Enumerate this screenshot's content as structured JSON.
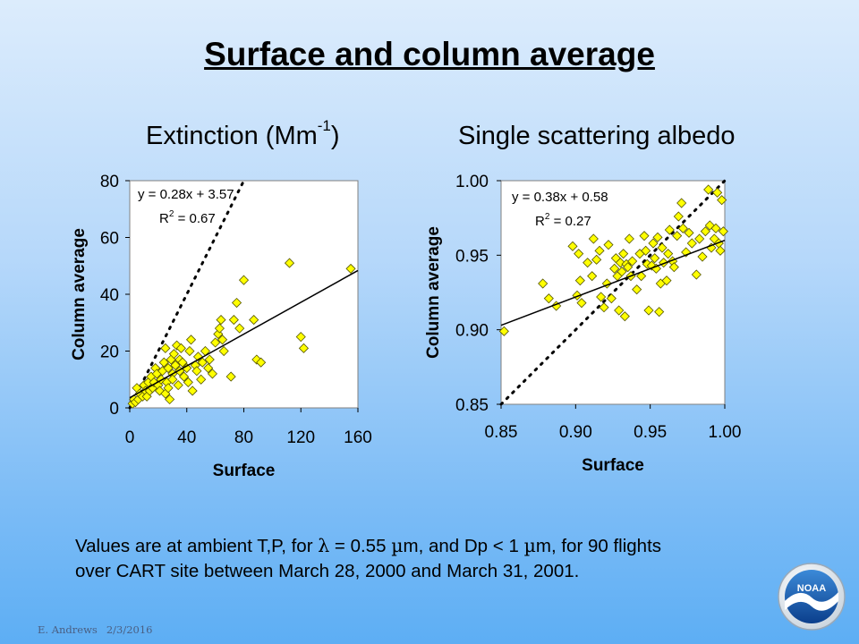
{
  "slide": {
    "title": "Surface and column average",
    "left_heading": {
      "text": "Extinction (Mm",
      "sup": "-1",
      "after": ")"
    },
    "right_heading": "Single scattering albedo",
    "note": {
      "part1": "Values are at ambient T,P, for ",
      "lambda_symbol": "λ",
      "part2": " = 0.55 ",
      "mu_symbol": "µ",
      "part3": "m, and Dp < 1 ",
      "mu_symbol2": "µ",
      "part4": "m, for 90 flights",
      "line2": "over CART site between March 28, 2000 and March 31, 2001."
    },
    "footer": {
      "author": "E. Andrews",
      "date": "2/3/2016"
    },
    "logo_text": "NOAA"
  },
  "colors": {
    "marker_fill": "#ffff00",
    "marker_stroke": "#555500",
    "plot_bg": "#ffffff",
    "line": "#000000"
  },
  "chart_data": [
    {
      "type": "scatter",
      "title": "Extinction (Mm-1)",
      "xlabel": "Surface",
      "ylabel": "Column average",
      "xlim": [
        0,
        160
      ],
      "ylim": [
        0,
        80
      ],
      "xticks": [
        0,
        40,
        80,
        120,
        160
      ],
      "yticks": [
        0,
        20,
        40,
        60,
        80
      ],
      "xtick_labels": [
        "0",
        "40",
        "80",
        "120",
        "160"
      ],
      "ytick_labels": [
        "0",
        "20",
        "40",
        "60",
        "80"
      ],
      "grid": false,
      "equation": "y = 0.28x + 3.57",
      "r2_base": "R",
      "r2_sup": "2",
      "r2_value": " = 0.67",
      "regression": {
        "slope": 0.28,
        "intercept": 3.57
      },
      "one_to_one": true,
      "points": [
        [
          2,
          1.5
        ],
        [
          3,
          3
        ],
        [
          4,
          2
        ],
        [
          5,
          7
        ],
        [
          6,
          3
        ],
        [
          7,
          5
        ],
        [
          9,
          4
        ],
        [
          10,
          8
        ],
        [
          11,
          6
        ],
        [
          12,
          4
        ],
        [
          13,
          9
        ],
        [
          14,
          6
        ],
        [
          15,
          11
        ],
        [
          16,
          7
        ],
        [
          17,
          9
        ],
        [
          18,
          14
        ],
        [
          19,
          12
        ],
        [
          20,
          8
        ],
        [
          21,
          6
        ],
        [
          22,
          10
        ],
        [
          23,
          13
        ],
        [
          24,
          16
        ],
        [
          25,
          5
        ],
        [
          25,
          21
        ],
        [
          26,
          9
        ],
        [
          27,
          14
        ],
        [
          27,
          7
        ],
        [
          28,
          3
        ],
        [
          29,
          17
        ],
        [
          30,
          12
        ],
        [
          30,
          10
        ],
        [
          31,
          19
        ],
        [
          32,
          15
        ],
        [
          33,
          22
        ],
        [
          34,
          8
        ],
        [
          35,
          13
        ],
        [
          35,
          17
        ],
        [
          36,
          21
        ],
        [
          37,
          16
        ],
        [
          38,
          11
        ],
        [
          40,
          14
        ],
        [
          41,
          9
        ],
        [
          42,
          20
        ],
        [
          43,
          24
        ],
        [
          44,
          6
        ],
        [
          46,
          15
        ],
        [
          47,
          13
        ],
        [
          48,
          18
        ],
        [
          50,
          10
        ],
        [
          51,
          16
        ],
        [
          53,
          20
        ],
        [
          55,
          14
        ],
        [
          56,
          17
        ],
        [
          58,
          12
        ],
        [
          60,
          23
        ],
        [
          62,
          26
        ],
        [
          63,
          28
        ],
        [
          64,
          31
        ],
        [
          65,
          24
        ],
        [
          66,
          20
        ],
        [
          71,
          11
        ],
        [
          73,
          31
        ],
        [
          75,
          37
        ],
        [
          77,
          28
        ],
        [
          80,
          45
        ],
        [
          87,
          31
        ],
        [
          89,
          17
        ],
        [
          92,
          16
        ],
        [
          112,
          51
        ],
        [
          120,
          25
        ],
        [
          122,
          21
        ],
        [
          155,
          49
        ]
      ]
    },
    {
      "type": "scatter",
      "title": "Single scattering albedo",
      "xlabel": "Surface",
      "ylabel": "Column average",
      "xlim": [
        0.85,
        1.0
      ],
      "ylim": [
        0.85,
        1.0
      ],
      "xticks": [
        0.85,
        0.9,
        0.95,
        1.0
      ],
      "yticks": [
        0.85,
        0.9,
        0.95,
        1.0
      ],
      "xtick_labels": [
        "0.85",
        "0.90",
        "0.95",
        "1.00"
      ],
      "ytick_labels": [
        "0.85",
        "0.90",
        "0.95",
        "1.00"
      ],
      "grid": false,
      "equation": "y = 0.38x + 0.58",
      "r2_base": "R",
      "r2_sup": "2",
      "r2_value": " = 0.27",
      "regression": {
        "slope": 0.38,
        "intercept": 0.58
      },
      "one_to_one": true,
      "points": [
        [
          0.852,
          0.899
        ],
        [
          0.878,
          0.931
        ],
        [
          0.882,
          0.921
        ],
        [
          0.887,
          0.916
        ],
        [
          0.898,
          0.956
        ],
        [
          0.901,
          0.923
        ],
        [
          0.902,
          0.951
        ],
        [
          0.903,
          0.933
        ],
        [
          0.904,
          0.918
        ],
        [
          0.908,
          0.945
        ],
        [
          0.911,
          0.936
        ],
        [
          0.912,
          0.961
        ],
        [
          0.914,
          0.947
        ],
        [
          0.916,
          0.953
        ],
        [
          0.917,
          0.922
        ],
        [
          0.919,
          0.915
        ],
        [
          0.921,
          0.931
        ],
        [
          0.922,
          0.957
        ],
        [
          0.924,
          0.921
        ],
        [
          0.926,
          0.941
        ],
        [
          0.927,
          0.948
        ],
        [
          0.928,
          0.936
        ],
        [
          0.929,
          0.913
        ],
        [
          0.93,
          0.945
        ],
        [
          0.931,
          0.939
        ],
        [
          0.932,
          0.951
        ],
        [
          0.933,
          0.909
        ],
        [
          0.934,
          0.944
        ],
        [
          0.935,
          0.942
        ],
        [
          0.936,
          0.961
        ],
        [
          0.937,
          0.936
        ],
        [
          0.938,
          0.946
        ],
        [
          0.941,
          0.927
        ],
        [
          0.943,
          0.951
        ],
        [
          0.944,
          0.936
        ],
        [
          0.946,
          0.963
        ],
        [
          0.947,
          0.953
        ],
        [
          0.948,
          0.944
        ],
        [
          0.949,
          0.913
        ],
        [
          0.951,
          0.943
        ],
        [
          0.952,
          0.958
        ],
        [
          0.953,
          0.948
        ],
        [
          0.954,
          0.941
        ],
        [
          0.955,
          0.962
        ],
        [
          0.956,
          0.912
        ],
        [
          0.957,
          0.931
        ],
        [
          0.958,
          0.955
        ],
        [
          0.959,
          0.945
        ],
        [
          0.961,
          0.933
        ],
        [
          0.962,
          0.951
        ],
        [
          0.963,
          0.967
        ],
        [
          0.965,
          0.946
        ],
        [
          0.966,
          0.942
        ],
        [
          0.968,
          0.963
        ],
        [
          0.969,
          0.976
        ],
        [
          0.971,
          0.985
        ],
        [
          0.972,
          0.968
        ],
        [
          0.974,
          0.952
        ],
        [
          0.976,
          0.965
        ],
        [
          0.978,
          0.958
        ],
        [
          0.981,
          0.937
        ],
        [
          0.983,
          0.961
        ],
        [
          0.985,
          0.949
        ],
        [
          0.987,
          0.966
        ],
        [
          0.989,
          0.994
        ],
        [
          0.99,
          0.97
        ],
        [
          0.991,
          0.955
        ],
        [
          0.993,
          0.961
        ],
        [
          0.994,
          0.968
        ],
        [
          0.996,
          0.958
        ],
        [
          0.997,
          0.953
        ],
        [
          0.998,
          0.987
        ],
        [
          0.999,
          0.966
        ],
        [
          0.995,
          0.992
        ]
      ]
    }
  ]
}
